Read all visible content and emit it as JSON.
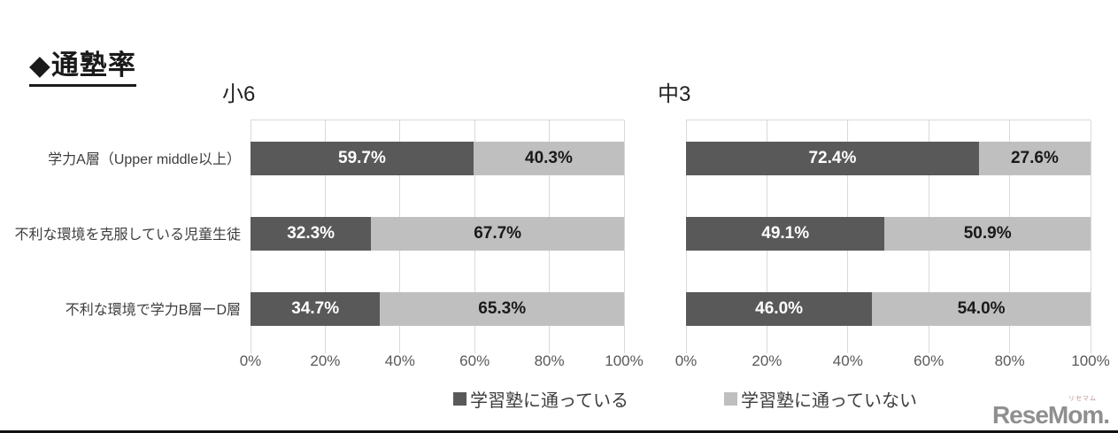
{
  "title": "◆通塾率",
  "colors": {
    "bar_dark": "#595959",
    "bar_light": "#bfbfbf",
    "grid": "#d9d9d9",
    "logo_gray": "#8f8f8f"
  },
  "legend": [
    {
      "label": "学習塾に通っている",
      "color": "#595959"
    },
    {
      "label": "学習塾に通っていない",
      "color": "#bfbfbf"
    }
  ],
  "logo": {
    "text": "ReseMom.",
    "ruby": "リセマム"
  },
  "chart_data": [
    {
      "type": "bar",
      "orientation": "horizontal",
      "stacked": true,
      "title": "小6",
      "categories": [
        "学力A層（Upper middle以上）",
        "不利な環境を克服している児童生徒",
        "不利な環境で学力B層ーD層"
      ],
      "series": [
        {
          "name": "学習塾に通っている",
          "values": [
            59.7,
            32.3,
            34.7
          ],
          "color": "#595959",
          "label_color": "#ffffff"
        },
        {
          "name": "学習塾に通っていない",
          "values": [
            40.3,
            67.7,
            65.3
          ],
          "color": "#bfbfbf",
          "label_color": "#1a1a1a"
        }
      ],
      "xticks": [
        "0%",
        "20%",
        "40%",
        "60%",
        "80%",
        "100%"
      ],
      "xlim": [
        0,
        100
      ],
      "grid": true,
      "legend_position": "bottom"
    },
    {
      "type": "bar",
      "orientation": "horizontal",
      "stacked": true,
      "title": "中3",
      "categories": [
        "学力A層（Upper middle以上）",
        "不利な環境を克服している児童生徒",
        "不利な環境で学力B層ーD層"
      ],
      "series": [
        {
          "name": "学習塾に通っている",
          "values": [
            72.4,
            49.1,
            46.0
          ],
          "color": "#595959",
          "label_color": "#ffffff"
        },
        {
          "name": "学習塾に通っていない",
          "values": [
            27.6,
            50.9,
            54.0
          ],
          "color": "#bfbfbf",
          "label_color": "#1a1a1a"
        }
      ],
      "xticks": [
        "0%",
        "20%",
        "40%",
        "60%",
        "80%",
        "100%"
      ],
      "xlim": [
        0,
        100
      ],
      "grid": true,
      "legend_position": "bottom"
    }
  ]
}
